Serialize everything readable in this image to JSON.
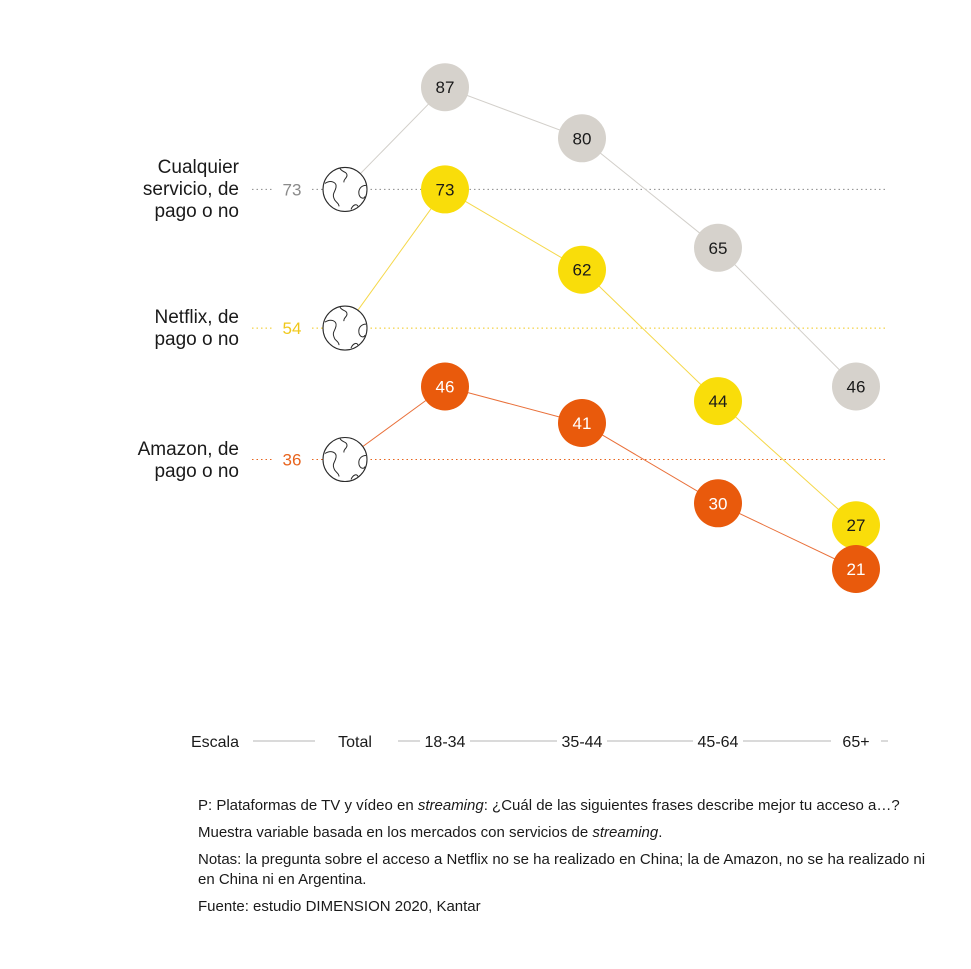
{
  "chart_data": {
    "type": "line",
    "categories": [
      "18-34",
      "35-44",
      "45-64",
      "65+"
    ],
    "scale_label": "Escala",
    "total_label": "Total",
    "series": [
      {
        "name": "Cualquier servicio, de pago o no",
        "label_lines": [
          "Cualquier",
          "servicio, de",
          "pago o no"
        ],
        "total": 73,
        "values": [
          87,
          80,
          65,
          46
        ],
        "color": "#d6d2cc",
        "line_color": "#d2cfca",
        "text_color": "#1a1a1a",
        "total_color": "#8a8a8a"
      },
      {
        "name": "Netflix, de pago o no",
        "label_lines": [
          "Netflix, de",
          "pago o no"
        ],
        "total": 54,
        "values": [
          73,
          62,
          44,
          27
        ],
        "color": "#f9dd0a",
        "line_color": "#f5d84a",
        "text_color": "#1a1a1a",
        "total_color": "#f0c81a"
      },
      {
        "name": "Amazon, de pago o no",
        "label_lines": [
          "Amazon, de",
          "pago o no"
        ],
        "total": 36,
        "values": [
          46,
          41,
          30,
          21
        ],
        "color": "#e95a0c",
        "line_color": "#e9703a",
        "text_color": "#ffffff",
        "total_color": "#e8641e"
      }
    ]
  },
  "notes": {
    "question_prefix": "P: Plataformas de TV y vídeo en ",
    "question_em": "streaming",
    "question_suffix": ": ¿Cuál de las siguientes frases describe mejor tu acceso a…?",
    "sample_prefix": "Muestra variable basada en los mercados con servicios de ",
    "sample_em": "streaming",
    "sample_suffix": ".",
    "notes_text": "Notas: la pregunta sobre el acceso a Netflix no se ha realizado en China; la de Amazon, no se ha realizado ni en China ni en Argentina.",
    "source": "Fuente: estudio DIMENSION 2020, Kantar"
  },
  "icons": {
    "total_marker": "globe-icon"
  }
}
